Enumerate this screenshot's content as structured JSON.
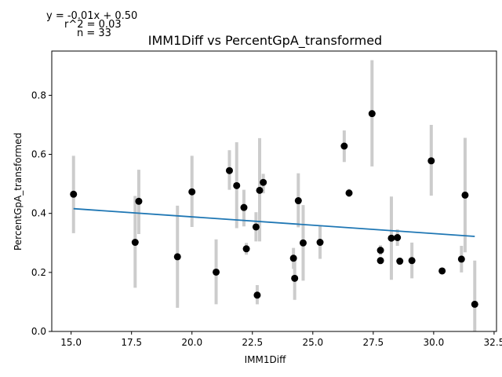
{
  "chart_data": {
    "type": "scatter",
    "title": "IMM1Diff vs PercentGpA_transformed",
    "xlabel": "IMM1Diff",
    "ylabel": "PercentGpA_transformed",
    "xlim": [
      14.2,
      32.6
    ],
    "ylim": [
      0.0,
      0.95
    ],
    "xticks": [
      15.0,
      17.5,
      20.0,
      22.5,
      25.0,
      27.5,
      30.0,
      32.5
    ],
    "xtick_labels": [
      "15.0",
      "17.5",
      "20.0",
      "22.5",
      "25.0",
      "27.5",
      "30.0",
      "32.5"
    ],
    "yticks": [
      0.0,
      0.2,
      0.4,
      0.6,
      0.8
    ],
    "ytick_labels": [
      "0.0",
      "0.2",
      "0.4",
      "0.6",
      "0.8"
    ],
    "grid": false,
    "annotations": {
      "equation": "y = -0.01x + 0.50",
      "r2": "r^2 = 0.03",
      "n": "n = 33"
    },
    "colors": {
      "points": "#000000",
      "error_bars": "#cccccc",
      "fit_line": "#1f77b4"
    },
    "fit_line": {
      "x": [
        15.1,
        31.7
      ],
      "y": [
        0.416,
        0.322
      ]
    },
    "points": [
      {
        "x": 15.1,
        "y": 0.465,
        "ylow": 0.333,
        "yhigh": 0.595
      },
      {
        "x": 17.65,
        "y": 0.302,
        "ylow": 0.148,
        "yhigh": 0.459
      },
      {
        "x": 17.8,
        "y": 0.441,
        "ylow": 0.33,
        "yhigh": 0.548
      },
      {
        "x": 19.4,
        "y": 0.253,
        "ylow": 0.08,
        "yhigh": 0.426
      },
      {
        "x": 20.0,
        "y": 0.473,
        "ylow": 0.354,
        "yhigh": 0.595
      },
      {
        "x": 21.0,
        "y": 0.201,
        "ylow": 0.092,
        "yhigh": 0.312
      },
      {
        "x": 21.55,
        "y": 0.545,
        "ylow": 0.48,
        "yhigh": 0.614
      },
      {
        "x": 21.85,
        "y": 0.494,
        "ylow": 0.35,
        "yhigh": 0.641
      },
      {
        "x": 22.15,
        "y": 0.42,
        "ylow": 0.356,
        "yhigh": 0.48
      },
      {
        "x": 22.25,
        "y": 0.28,
        "ylow": 0.26,
        "yhigh": 0.3
      },
      {
        "x": 22.65,
        "y": 0.354,
        "ylow": 0.305,
        "yhigh": 0.404
      },
      {
        "x": 22.7,
        "y": 0.123,
        "ylow": 0.092,
        "yhigh": 0.157
      },
      {
        "x": 22.8,
        "y": 0.478,
        "ylow": 0.305,
        "yhigh": 0.655
      },
      {
        "x": 22.95,
        "y": 0.505,
        "ylow": 0.468,
        "yhigh": 0.534
      },
      {
        "x": 24.2,
        "y": 0.248,
        "ylow": 0.212,
        "yhigh": 0.283
      },
      {
        "x": 24.25,
        "y": 0.18,
        "ylow": 0.107,
        "yhigh": 0.251
      },
      {
        "x": 24.4,
        "y": 0.443,
        "ylow": 0.353,
        "yhigh": 0.536
      },
      {
        "x": 24.6,
        "y": 0.3,
        "ylow": 0.172,
        "yhigh": 0.428
      },
      {
        "x": 25.3,
        "y": 0.302,
        "ylow": 0.246,
        "yhigh": 0.357
      },
      {
        "x": 26.3,
        "y": 0.628,
        "ylow": 0.574,
        "yhigh": 0.681
      },
      {
        "x": 26.5,
        "y": 0.469,
        "ylow": 0.455,
        "yhigh": 0.483
      },
      {
        "x": 27.45,
        "y": 0.738,
        "ylow": 0.559,
        "yhigh": 0.919
      },
      {
        "x": 27.8,
        "y": 0.275,
        "ylow": 0.258,
        "yhigh": 0.292
      },
      {
        "x": 27.8,
        "y": 0.24,
        "ylow": 0.228,
        "yhigh": 0.252
      },
      {
        "x": 28.25,
        "y": 0.316,
        "ylow": 0.175,
        "yhigh": 0.457
      },
      {
        "x": 28.5,
        "y": 0.318,
        "ylow": 0.29,
        "yhigh": 0.346
      },
      {
        "x": 28.6,
        "y": 0.238,
        "ylow": 0.226,
        "yhigh": 0.25
      },
      {
        "x": 29.1,
        "y": 0.24,
        "ylow": 0.18,
        "yhigh": 0.301
      },
      {
        "x": 29.9,
        "y": 0.578,
        "ylow": 0.46,
        "yhigh": 0.7
      },
      {
        "x": 30.35,
        "y": 0.205,
        "ylow": 0.195,
        "yhigh": 0.215
      },
      {
        "x": 31.15,
        "y": 0.245,
        "ylow": 0.2,
        "yhigh": 0.29
      },
      {
        "x": 31.3,
        "y": 0.462,
        "ylow": 0.268,
        "yhigh": 0.656
      },
      {
        "x": 31.7,
        "y": 0.092,
        "ylow": 0.0,
        "yhigh": 0.24
      }
    ]
  }
}
